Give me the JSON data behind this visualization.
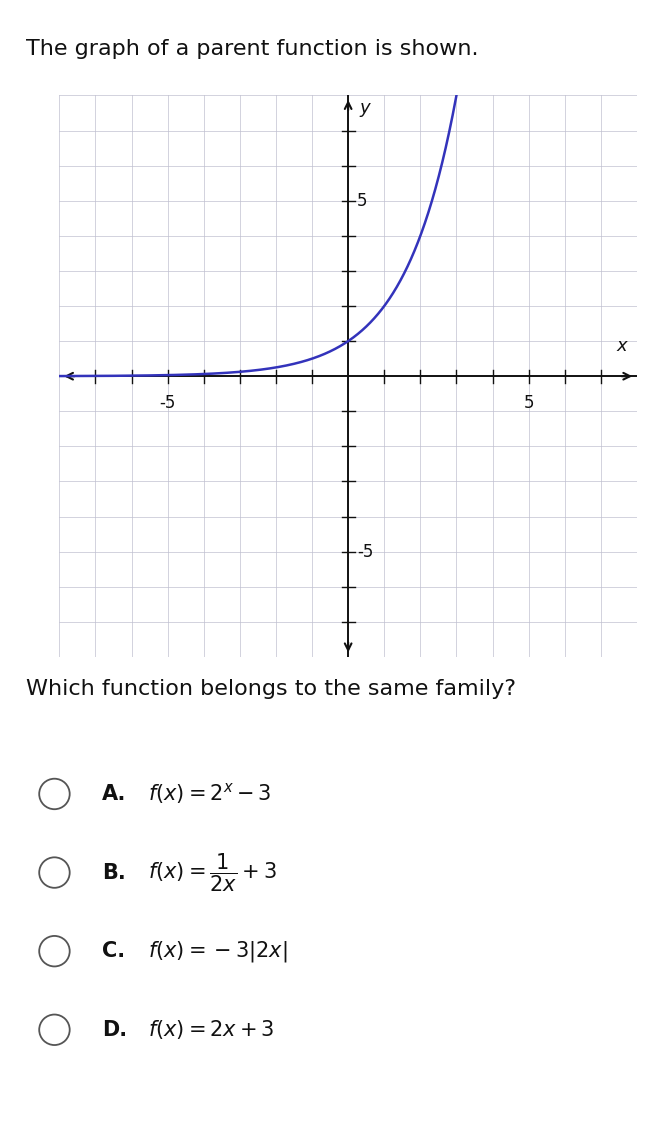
{
  "title": "The graph of a parent function is shown.",
  "question": "Which function belongs to the same family?",
  "graph_bg": "#eeeef4",
  "grid_color": "#c0c0d0",
  "curve_color": "#3333bb",
  "axis_color": "#111111",
  "xmin": -8,
  "xmax": 8,
  "ymin": -8,
  "ymax": 8,
  "xtick_labeled": [
    -5,
    5
  ],
  "ytick_labeled": [
    -5,
    5
  ],
  "options_labels": [
    "A.",
    "B.",
    "C.",
    "D."
  ],
  "options_texts": [
    "$f(x) = 2^x - 3$",
    "$f(x) = \\dfrac{1}{2x} + 3$",
    "$f(x) = -3|2x|$",
    "$f(x) = 2x + 3$"
  ],
  "font_size_title": 16,
  "font_size_question": 16,
  "font_size_options": 15,
  "font_size_axis_labels": 12,
  "font_size_tick": 12
}
